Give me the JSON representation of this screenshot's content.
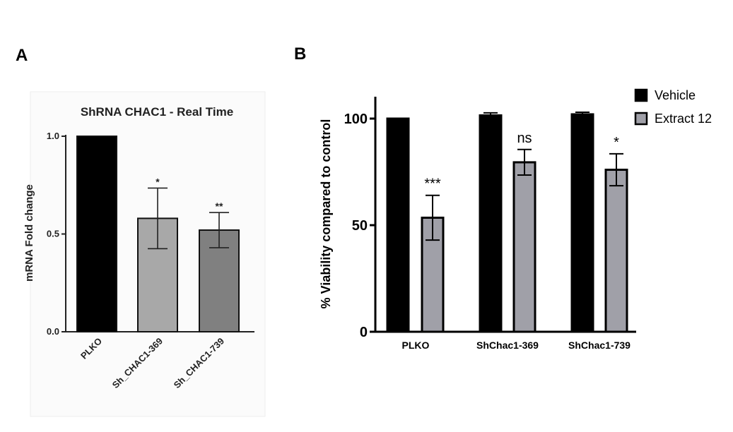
{
  "panels": {
    "a_letter": "A",
    "b_letter": "B"
  },
  "chart_data": [
    {
      "type": "bar",
      "title": "ShRNA CHAC1 - Real Time",
      "ylabel": "mRNA Fold change",
      "xlabel": "",
      "ylim": [
        0,
        1.0
      ],
      "yticks": [
        "0.0",
        "0.5",
        "1.0"
      ],
      "yticks_values": [
        0,
        0.5,
        1.0
      ],
      "categories": [
        "PLKO",
        "Sh_CHAC1-369",
        "Sh_CHAC1-739"
      ],
      "values": [
        1.0,
        0.58,
        0.52
      ],
      "errors": [
        0,
        0.155,
        0.09
      ],
      "significance": [
        "",
        "*",
        "**"
      ],
      "colors": [
        "#000000",
        "#a8a8a8",
        "#808080"
      ]
    },
    {
      "type": "bar",
      "title": "",
      "ylabel": "% Viability compared to control",
      "xlabel": "",
      "ylim": [
        0,
        110
      ],
      "yticks": [
        "0",
        "50",
        "100"
      ],
      "yticks_values": [
        0,
        50,
        100
      ],
      "categories": [
        "PLKO",
        "ShChac1-369",
        "ShChac1-739"
      ],
      "series": [
        {
          "name": "Vehicle",
          "color": "#000000",
          "values": [
            100,
            101.5,
            102
          ],
          "errors": [
            0,
            1.2,
            1.0
          ],
          "significance": [
            "",
            "",
            ""
          ]
        },
        {
          "name": "Extract 12",
          "color": "#a0a0a8",
          "values": [
            53.5,
            79.5,
            76
          ],
          "errors": [
            10.5,
            6.0,
            7.5
          ],
          "significance": [
            "***",
            "ns",
            "*"
          ]
        }
      ],
      "legend_position": "top-right"
    }
  ]
}
